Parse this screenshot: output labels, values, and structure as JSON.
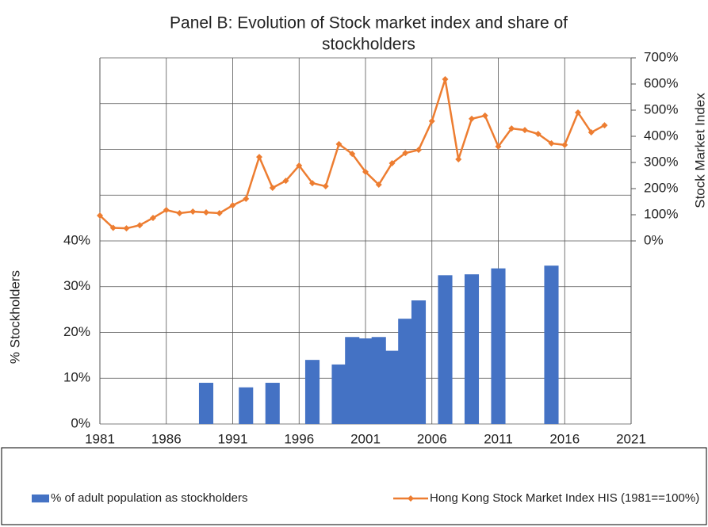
{
  "chart_data": {
    "type": "bar_line",
    "title": [
      "Panel B: Evolution of Stock market index and share of",
      "stockholders"
    ],
    "y_label": "% Stockholders",
    "y2_label": "Stock Market Index",
    "xlim": [
      1981,
      2021
    ],
    "xticks": [
      1981,
      1986,
      1991,
      1996,
      2001,
      2006,
      2011,
      2016,
      2021
    ],
    "ylim": [
      0,
      80
    ],
    "yticks": [
      {
        "value": 0,
        "label": "0%"
      },
      {
        "value": 10,
        "label": "10%"
      },
      {
        "value": 20,
        "label": "20%"
      },
      {
        "value": 30,
        "label": "30%"
      },
      {
        "value": 40,
        "label": "40%"
      },
      {
        "value": 50,
        "label": null
      },
      {
        "value": 60,
        "label": null
      },
      {
        "value": 70,
        "label": null
      },
      {
        "value": 80,
        "label": null
      }
    ],
    "y2lim": [
      -700,
      700
    ],
    "y2ticks": [
      {
        "value": 0,
        "label": "0%"
      },
      {
        "value": 100,
        "label": "100%"
      },
      {
        "value": 200,
        "label": "200%"
      },
      {
        "value": 300,
        "label": "300%"
      },
      {
        "value": 400,
        "label": "400%"
      },
      {
        "value": 500,
        "label": "500%"
      },
      {
        "value": 600,
        "label": "600%"
      },
      {
        "value": 700,
        "label": "700%"
      }
    ],
    "grid": true,
    "legend": "bottom",
    "series": [
      {
        "name": "% of adult population as stockholders",
        "type": "bar",
        "color": "#4472c4",
        "x": [
          1989,
          1992,
          1994,
          1997,
          1999,
          2000,
          2001,
          2002,
          2003,
          2004,
          2005,
          2007,
          2009,
          2011,
          2015
        ],
        "values": [
          9,
          8,
          9,
          14,
          13,
          19,
          18.7,
          19,
          16,
          23,
          27,
          32.5,
          32.7,
          34,
          34.6
        ]
      },
      {
        "name": "Hong Kong Stock Market Index HIS (1981==100%)",
        "type": "line",
        "color": "#ed7d31",
        "axis": "y2",
        "x": [
          1981,
          1982,
          1983,
          1984,
          1985,
          1986,
          1987,
          1988,
          1989,
          1990,
          1991,
          1992,
          1993,
          1994,
          1995,
          1996,
          1997,
          1998,
          1999,
          2000,
          2001,
          2002,
          2003,
          2004,
          2005,
          2006,
          2007,
          2008,
          2009,
          2010,
          2011,
          2012,
          2013,
          2014,
          2015,
          2016,
          2017,
          2018,
          2019
        ],
        "values": [
          97,
          50,
          48,
          60,
          88,
          118,
          106,
          112,
          109,
          106,
          136,
          161,
          321,
          203,
          230,
          288,
          221,
          209,
          370,
          333,
          264,
          215,
          297,
          336,
          348,
          458,
          618,
          312,
          467,
          479,
          361,
          430,
          424,
          409,
          373,
          367,
          491,
          415,
          442
        ]
      }
    ]
  }
}
